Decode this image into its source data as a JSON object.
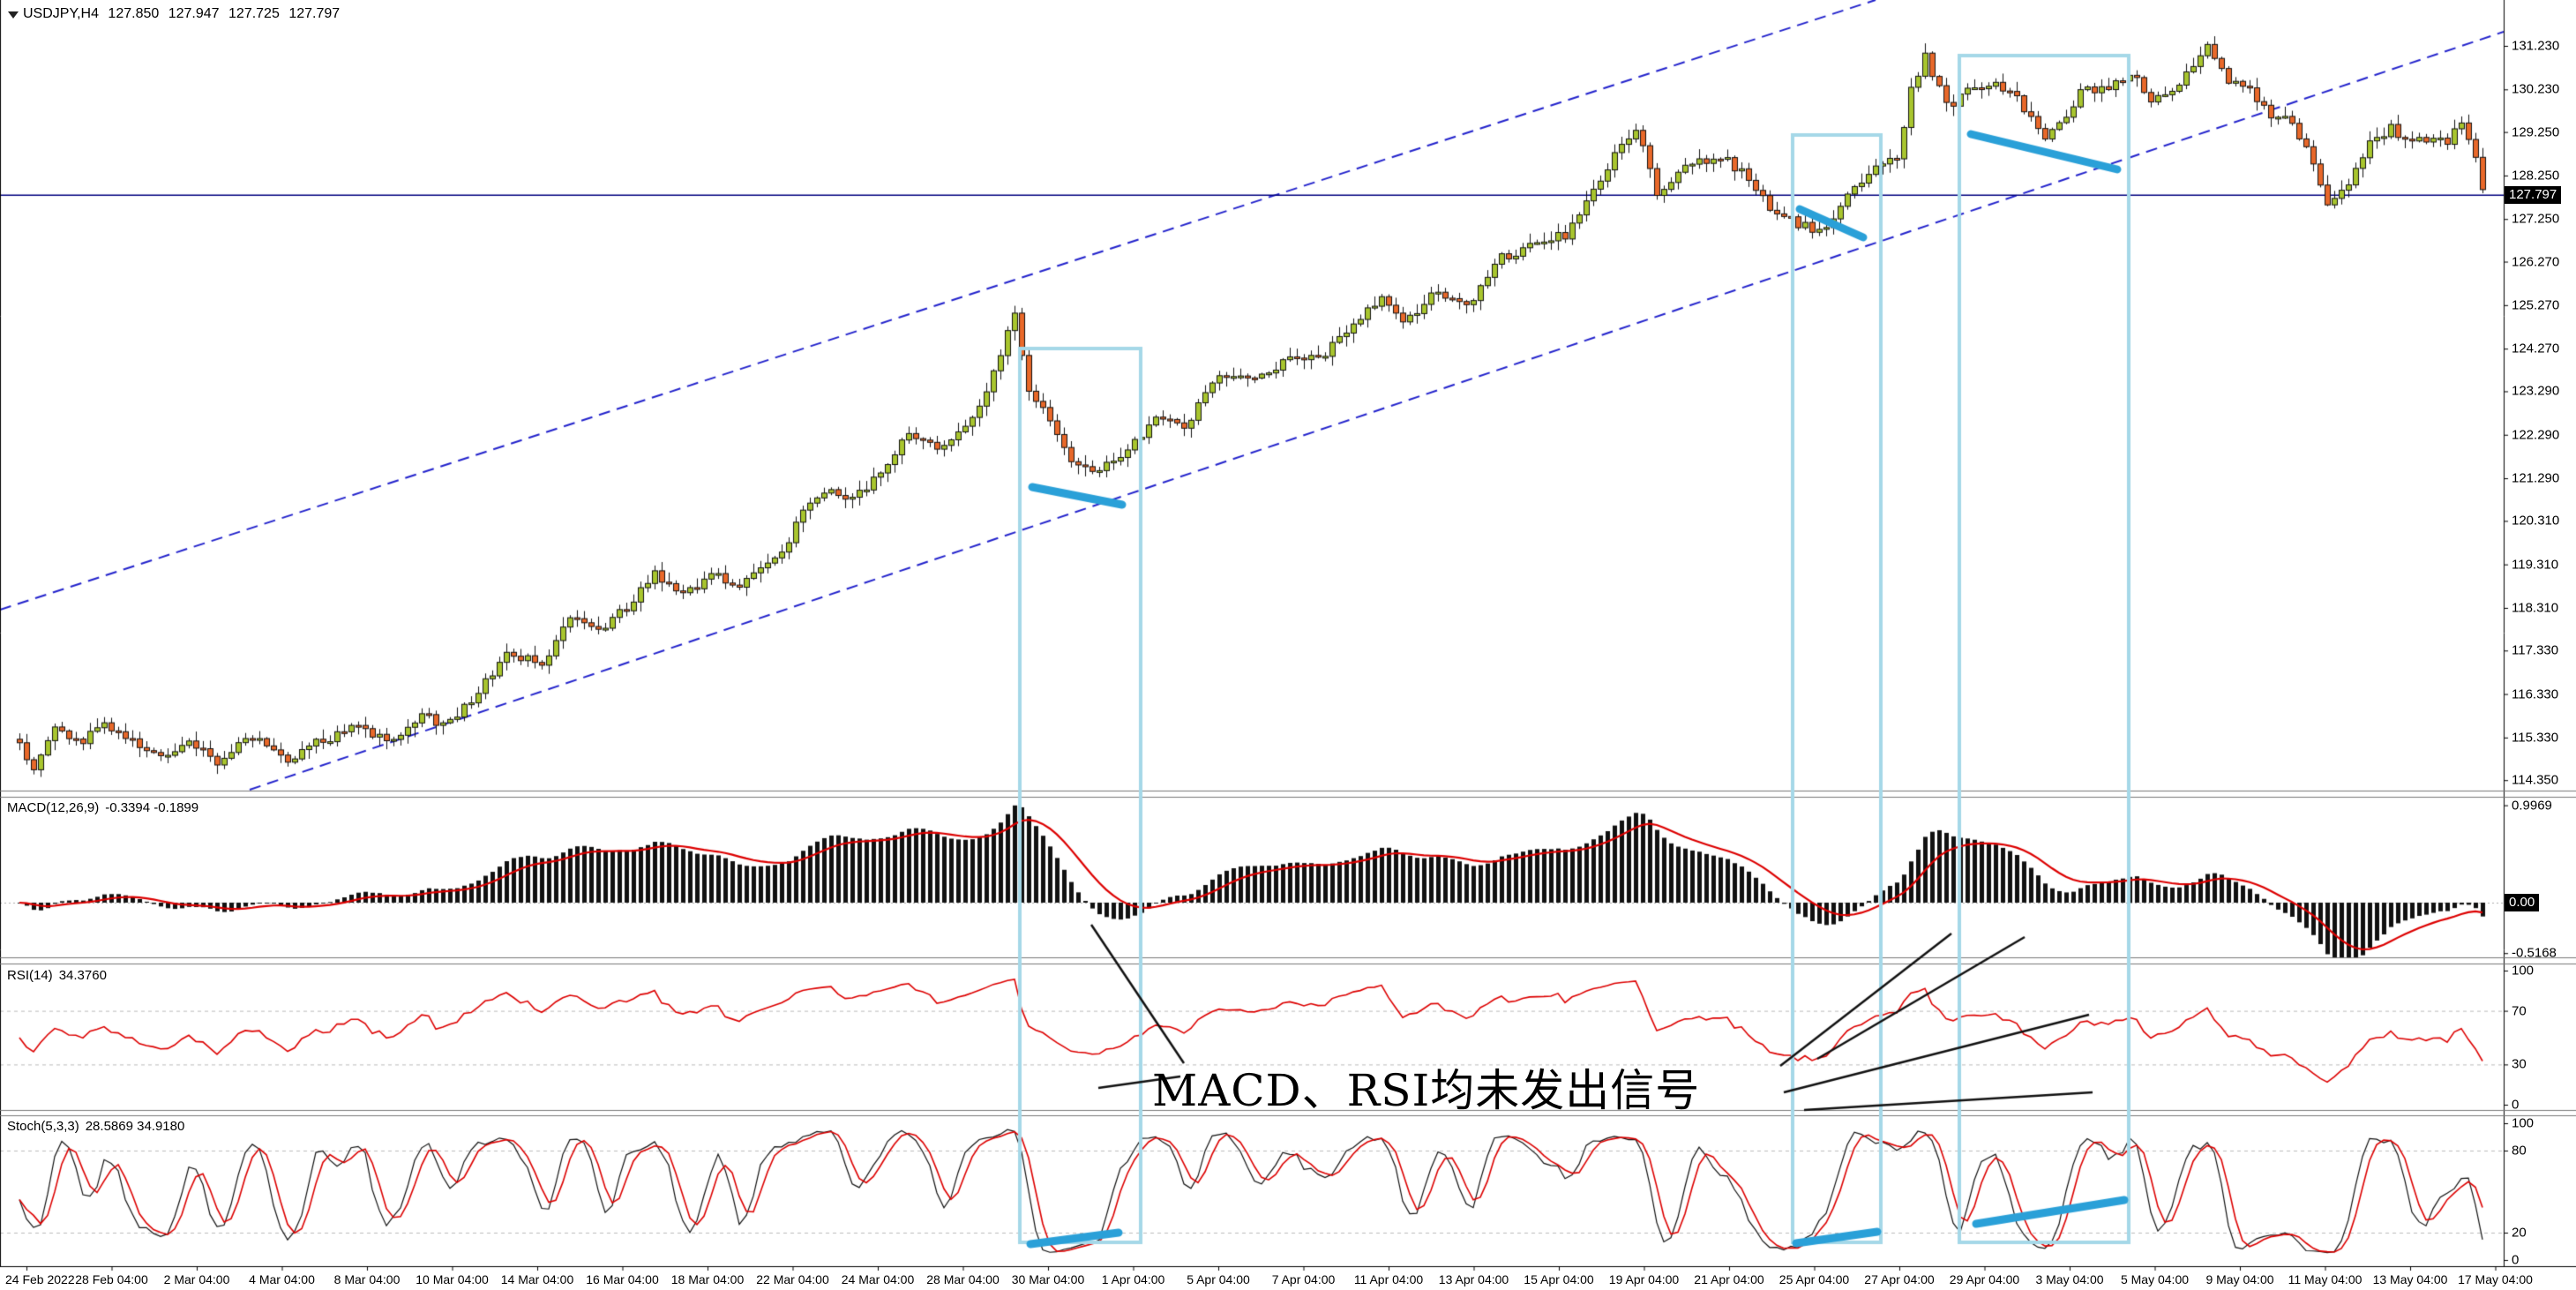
{
  "window": {
    "symbol": "USDJPY,H4",
    "open": "127.850",
    "high": "127.947",
    "low": "127.725",
    "close": "127.797"
  },
  "panes": {
    "macd": {
      "label": "MACD(12,26,9)",
      "values": "-0.3394 -0.1899"
    },
    "rsi": {
      "label": "RSI(14)",
      "values": "34.3760"
    },
    "stoch": {
      "label": "Stoch(5,3,3)",
      "values": "28.5869 34.9180"
    }
  },
  "axes": {
    "main": [
      "131.230",
      "130.230",
      "129.250",
      "128.250",
      "127.250",
      "126.270",
      "125.270",
      "124.270",
      "123.290",
      "122.290",
      "121.290",
      "120.310",
      "119.310",
      "118.310",
      "117.330",
      "116.330",
      "115.330",
      "114.350"
    ],
    "main_tag": "127.797",
    "macd": [
      "0.9969",
      "-0.5168"
    ],
    "macd_tag": "0.00",
    "rsi": [
      "100",
      "70",
      "30",
      "0"
    ],
    "stoch": [
      "100",
      "80",
      "20",
      "0"
    ]
  },
  "time_labels": [
    "24 Feb 2022",
    "28 Feb 04:00",
    "2 Mar 04:00",
    "4 Mar 04:00",
    "8 Mar 04:00",
    "10 Mar 04:00",
    "14 Mar 04:00",
    "16 Mar 04:00",
    "18 Mar 04:00",
    "22 Mar 04:00",
    "24 Mar 04:00",
    "28 Mar 04:00",
    "30 Mar 04:00",
    "1 Apr 04:00",
    "5 Apr 04:00",
    "7 Apr 04:00",
    "11 Apr 04:00",
    "13 Apr 04:00",
    "15 Apr 04:00",
    "19 Apr 04:00",
    "21 Apr 04:00",
    "25 Apr 04:00",
    "27 Apr 04:00",
    "29 Apr 04:00",
    "3 May 04:00",
    "5 May 04:00",
    "9 May 04:00",
    "11 May 04:00",
    "13 May 04:00",
    "17 May 04:00"
  ],
  "chart_data": {
    "type": "candlestick",
    "title": "USDJPY H4 with MACD(12,26,9), RSI(14), Stoch(5,3,3)",
    "symbol": "USDJPY",
    "timeframe": "H4",
    "bars": 350,
    "current_price": 127.797,
    "ylim_main": [
      114.11,
      132.285
    ],
    "macd_ylim": [
      -0.56,
      1.09
    ],
    "rsi_levels": [
      70,
      30
    ],
    "stoch_levels": [
      80,
      20
    ],
    "price_path": [
      [
        0,
        115.2
      ],
      [
        2,
        114.55
      ],
      [
        5,
        115.55
      ],
      [
        9,
        115.2
      ],
      [
        12,
        115.7
      ],
      [
        15,
        115.35
      ],
      [
        20,
        114.9
      ],
      [
        24,
        115.3
      ],
      [
        28,
        114.75
      ],
      [
        33,
        115.35
      ],
      [
        38,
        114.85
      ],
      [
        42,
        115.2
      ],
      [
        48,
        115.6
      ],
      [
        52,
        115.25
      ],
      [
        57,
        115.85
      ],
      [
        60,
        115.6
      ],
      [
        64,
        116.15
      ],
      [
        69,
        117.3
      ],
      [
        74,
        117.05
      ],
      [
        78,
        118.1
      ],
      [
        82,
        117.75
      ],
      [
        87,
        118.45
      ],
      [
        90,
        119.1
      ],
      [
        93,
        118.6
      ],
      [
        99,
        119.1
      ],
      [
        102,
        118.7
      ],
      [
        105,
        119.25
      ],
      [
        108,
        119.55
      ],
      [
        111,
        120.5
      ],
      [
        114,
        121.0
      ],
      [
        118,
        120.8
      ],
      [
        122,
        121.4
      ],
      [
        126,
        122.4
      ],
      [
        130,
        121.9
      ],
      [
        134,
        122.55
      ],
      [
        137,
        123.2
      ],
      [
        139,
        124.2
      ],
      [
        141,
        125.05
      ],
      [
        143,
        123.3
      ],
      [
        146,
        122.6
      ],
      [
        149,
        121.7
      ],
      [
        152,
        121.35
      ],
      [
        156,
        121.85
      ],
      [
        159,
        122.3
      ],
      [
        162,
        122.75
      ],
      [
        165,
        122.45
      ],
      [
        170,
        123.65
      ],
      [
        175,
        123.55
      ],
      [
        180,
        124.0
      ],
      [
        184,
        124.05
      ],
      [
        188,
        124.65
      ],
      [
        193,
        125.4
      ],
      [
        196,
        124.85
      ],
      [
        201,
        125.6
      ],
      [
        205,
        125.25
      ],
      [
        210,
        126.35
      ],
      [
        214,
        126.6
      ],
      [
        219,
        126.9
      ],
      [
        222,
        127.6
      ],
      [
        226,
        128.7
      ],
      [
        229,
        129.3
      ],
      [
        232,
        127.9
      ],
      [
        236,
        128.45
      ],
      [
        241,
        128.7
      ],
      [
        244,
        128.3
      ],
      [
        249,
        127.35
      ],
      [
        252,
        127.15
      ],
      [
        255,
        126.95
      ],
      [
        258,
        127.55
      ],
      [
        262,
        128.3
      ],
      [
        266,
        128.65
      ],
      [
        268,
        130.2
      ],
      [
        270,
        131.0
      ],
      [
        273,
        129.85
      ],
      [
        276,
        130.15
      ],
      [
        280,
        130.4
      ],
      [
        283,
        130.05
      ],
      [
        287,
        129.15
      ],
      [
        289,
        129.45
      ],
      [
        292,
        130.15
      ],
      [
        296,
        130.3
      ],
      [
        299,
        130.6
      ],
      [
        302,
        130.05
      ],
      [
        306,
        130.35
      ],
      [
        310,
        131.2
      ],
      [
        313,
        130.45
      ],
      [
        316,
        130.25
      ],
      [
        319,
        129.6
      ],
      [
        322,
        129.55
      ],
      [
        325,
        128.5
      ],
      [
        327,
        127.6
      ],
      [
        330,
        128.05
      ],
      [
        333,
        129.0
      ],
      [
        336,
        129.35
      ],
      [
        339,
        128.95
      ],
      [
        342,
        129.2
      ],
      [
        344,
        129.0
      ],
      [
        346,
        129.55
      ],
      [
        348,
        128.6
      ],
      [
        349,
        127.85
      ]
    ]
  },
  "annotations": {
    "text": "MACD、RSI均未发出信号",
    "rects": [
      [
        1156,
        395,
        137,
        1013
      ],
      [
        2032,
        153,
        100,
        1255
      ],
      [
        2221,
        63,
        192,
        1345
      ]
    ],
    "markers": [
      [
        1170,
        552,
        1272,
        572
      ],
      [
        2040,
        237,
        2112,
        269
      ],
      [
        2234,
        152,
        2400,
        192
      ],
      [
        1168,
        1410,
        1268,
        1397
      ],
      [
        2036,
        1409,
        2128,
        1396
      ],
      [
        2240,
        1387,
        2408,
        1360
      ]
    ],
    "pointers": [
      [
        1237,
        1048,
        1342,
        1205
      ],
      [
        1245,
        1233,
        1338,
        1220
      ],
      [
        2018,
        1208,
        2212,
        1058
      ],
      [
        2060,
        1200,
        2295,
        1062
      ],
      [
        2022,
        1238,
        2368,
        1150
      ],
      [
        2045,
        1258,
        2372,
        1238
      ]
    ],
    "channel_upper": [
      0,
      691,
      2126,
      0
    ],
    "channel_lower": [
      283,
      895,
      2838,
      36
    ]
  },
  "colors": {
    "bull": "#a8c52e",
    "bear": "#e8682a",
    "outline": "#111111",
    "histogram": "#111111",
    "signal_red": "#dd0000",
    "stoch_main": "#111111",
    "channel_blue": "#2323cc",
    "price_line": "#000080",
    "marker_blue": "#2aa0d8",
    "rect_cyan": "#a5d8e8",
    "grid_dash": "#bbbbbb",
    "separator": "#787878"
  }
}
